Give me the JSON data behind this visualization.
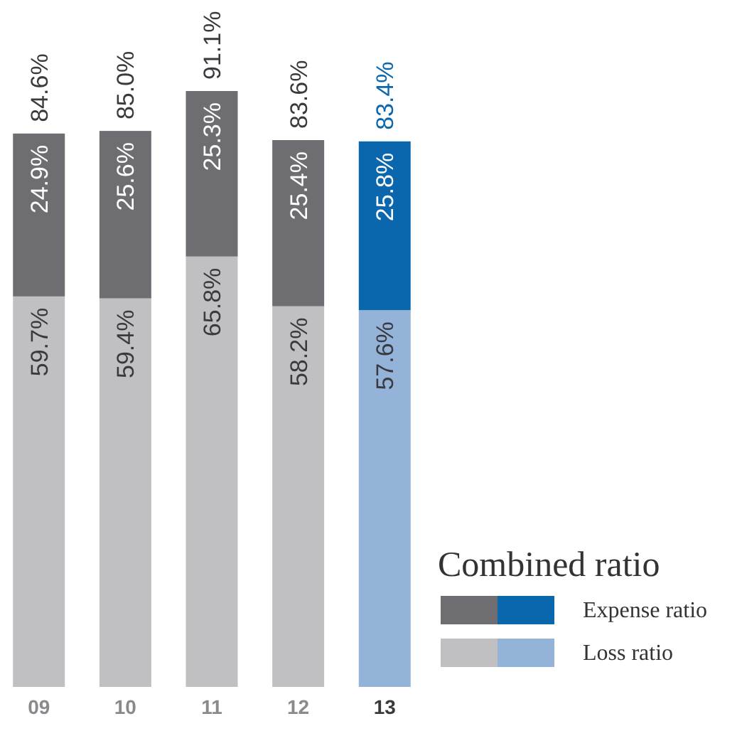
{
  "chart_data": {
    "type": "bar",
    "stacked": true,
    "categories": [
      "09",
      "10",
      "11",
      "12",
      "13"
    ],
    "series": [
      {
        "name": "Loss ratio",
        "color": "#c0c0c2",
        "colors": [
          "#c0c0c2",
          "#c0c0c2",
          "#c0c0c2",
          "#c0c0c2",
          "#93b3d8"
        ],
        "values": [
          59.7,
          59.4,
          65.8,
          58.2,
          57.6
        ],
        "value_labels": [
          "59.7%",
          "59.4%",
          "65.8%",
          "58.2%",
          "57.6%"
        ]
      },
      {
        "name": "Expense ratio",
        "color": "#6d6d72",
        "colors": [
          "#6d6d72",
          "#6d6d72",
          "#6d6d72",
          "#6d6d72",
          "#0a67ad"
        ],
        "values": [
          24.9,
          25.6,
          25.3,
          25.4,
          25.8
        ],
        "value_labels": [
          "24.9%",
          "25.6%",
          "25.3%",
          "25.4%",
          "25.8%"
        ]
      }
    ],
    "totals": [
      "84.6%",
      "85.0%",
      "91.1%",
      "83.6%",
      "83.4%"
    ],
    "legend": "bottom right",
    "legend_title": "Combined ratio"
  }
}
